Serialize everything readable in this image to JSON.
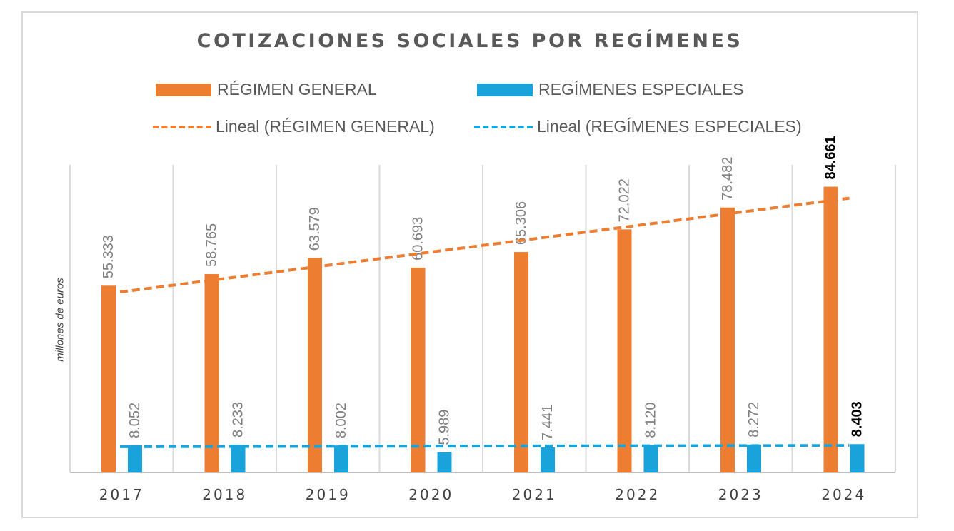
{
  "chart_data": {
    "type": "bar",
    "title": "COTIZACIONES SOCIALES POR REGÍMENES",
    "ylabel": "millones de euros",
    "categories": [
      "2017",
      "2018",
      "2019",
      "2020",
      "2021",
      "2022",
      "2023",
      "2024"
    ],
    "series": [
      {
        "name": "RÉGIMEN GENERAL",
        "color": "#ED7D31",
        "values": [
          55.333,
          58.765,
          63.579,
          60.693,
          65.306,
          72.022,
          78.482,
          84.661
        ],
        "labels": [
          "55.333",
          "58.765",
          "63.579",
          "60.693",
          "65.306",
          "72.022",
          "78.482",
          "84.661"
        ]
      },
      {
        "name": "REGÍMENES ESPECIALES",
        "color": "#1AA3DB",
        "values": [
          8.052,
          8.233,
          8.002,
          5.989,
          7.441,
          8.12,
          8.272,
          8.403
        ],
        "labels": [
          "8.052",
          "8.233",
          "8.002",
          "5.989",
          "7.441",
          "8.120",
          "8.272",
          "8.403"
        ]
      }
    ],
    "trendlines": [
      {
        "name": "Lineal (RÉGIMEN GENERAL)",
        "color": "#ED7D31",
        "series": 0,
        "type": "linear"
      },
      {
        "name": "Lineal (REGÍMENES ESPECIALES)",
        "color": "#1AA3DB",
        "series": 1,
        "type": "linear"
      }
    ],
    "highlight_last_label": true,
    "legend_position": "top",
    "gridlines": "vertical"
  }
}
